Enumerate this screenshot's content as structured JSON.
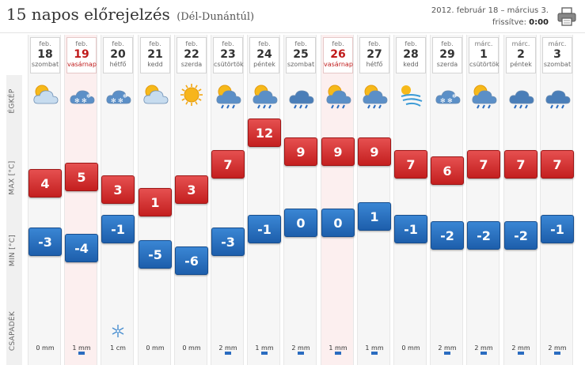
{
  "header": {
    "title": "15 napos előrejelzés",
    "region": "(Dél-Dunántúl)",
    "date_range": "2012. február 18 – március 3.",
    "updated_label": "frissítve:",
    "updated_time": "0:00",
    "print_icon": "printer-icon"
  },
  "row_labels": {
    "sky": "ÉGKÉP",
    "max": "MAX [°C]",
    "min": "MIN [°C]",
    "precip": "CSAPADÉK"
  },
  "colors": {
    "max_red": "#c41f1f",
    "min_blue": "#1d5eab",
    "weekend_red": "#c01b1b",
    "weekend_bg": "#fcefef"
  },
  "days": [
    {
      "month": "feb.",
      "day": "18",
      "weekday": "szombat",
      "weekend": false,
      "icon": "sun-cloud-icon",
      "max": 4,
      "min": -3,
      "precip": "0 mm",
      "precip_bar": false
    },
    {
      "month": "feb.",
      "day": "19",
      "weekday": "vasárnap",
      "weekend": true,
      "icon": "cloud-snow-icon",
      "max": 5,
      "min": -4,
      "precip": "1 mm",
      "precip_bar": true
    },
    {
      "month": "feb.",
      "day": "20",
      "weekday": "hétfő",
      "weekend": false,
      "icon": "cloud-snow-icon",
      "max": 3,
      "min": -1,
      "precip": "1 cm",
      "precip_bar": false,
      "snow": true
    },
    {
      "month": "feb.",
      "day": "21",
      "weekday": "kedd",
      "weekend": false,
      "icon": "sun-cloud-icon",
      "max": 1,
      "min": -5,
      "precip": "0 mm",
      "precip_bar": false
    },
    {
      "month": "feb.",
      "day": "22",
      "weekday": "szerda",
      "weekend": false,
      "icon": "sun-icon",
      "max": 3,
      "min": -6,
      "precip": "0 mm",
      "precip_bar": false
    },
    {
      "month": "feb.",
      "day": "23",
      "weekday": "csütörtök",
      "weekend": false,
      "icon": "sun-cloud-rain-icon",
      "max": 7,
      "min": -3,
      "precip": "2 mm",
      "precip_bar": true
    },
    {
      "month": "feb.",
      "day": "24",
      "weekday": "péntek",
      "weekend": false,
      "icon": "sun-cloud-rain-icon",
      "max": 12,
      "min": -1,
      "precip": "1 mm",
      "precip_bar": true
    },
    {
      "month": "feb.",
      "day": "25",
      "weekday": "szombat",
      "weekend": false,
      "icon": "cloud-rain-icon",
      "max": 9,
      "min": 0,
      "precip": "2 mm",
      "precip_bar": true
    },
    {
      "month": "feb.",
      "day": "26",
      "weekday": "vasárnap",
      "weekend": true,
      "icon": "sun-cloud-rain-icon",
      "max": 9,
      "min": 0,
      "precip": "1 mm",
      "precip_bar": true
    },
    {
      "month": "feb.",
      "day": "27",
      "weekday": "hétfő",
      "weekend": false,
      "icon": "sun-cloud-rain-icon",
      "max": 9,
      "min": 1,
      "precip": "1 mm",
      "precip_bar": true
    },
    {
      "month": "feb.",
      "day": "28",
      "weekday": "kedd",
      "weekend": false,
      "icon": "wind-icon",
      "max": 7,
      "min": -1,
      "precip": "0 mm",
      "precip_bar": false
    },
    {
      "month": "feb.",
      "day": "29",
      "weekday": "szerda",
      "weekend": false,
      "icon": "cloud-snow-icon",
      "max": 6,
      "min": -2,
      "precip": "2 mm",
      "precip_bar": true
    },
    {
      "month": "márc.",
      "day": "1",
      "weekday": "csütörtök",
      "weekend": false,
      "icon": "sun-cloud-rain-icon",
      "max": 7,
      "min": -2,
      "precip": "2 mm",
      "precip_bar": true
    },
    {
      "month": "márc.",
      "day": "2",
      "weekday": "péntek",
      "weekend": false,
      "icon": "cloud-rain-icon",
      "max": 7,
      "min": -2,
      "precip": "2 mm",
      "precip_bar": true
    },
    {
      "month": "márc.",
      "day": "3",
      "weekday": "szombat",
      "weekend": false,
      "icon": "cloud-rain-icon",
      "max": 7,
      "min": -1,
      "precip": "2 mm",
      "precip_bar": true
    }
  ]
}
